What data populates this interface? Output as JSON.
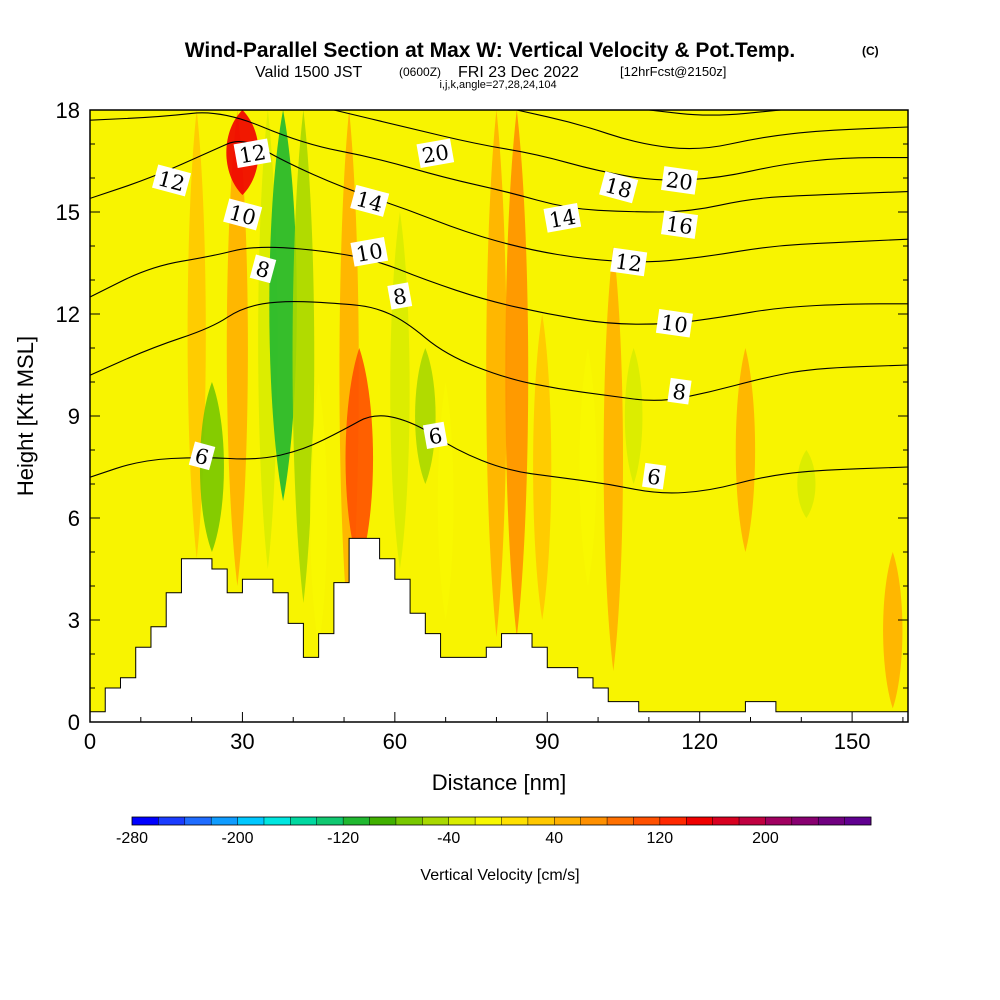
{
  "chart_data": {
    "type": "heatmap",
    "title": "Wind-Parallel Section at Max W: Vertical Velocity & Pot.Temp.",
    "title_suffix": "(C)",
    "subtitle_main": "Valid 1500 JST",
    "subtitle_utc": "(0600Z)",
    "subtitle_date": "FRI 23 Dec 2022",
    "subtitle_fcst": "[12hrFcst@2150z]",
    "subtitle_grid": "i,j,k,angle=27,28,24,104",
    "xlabel": "Distance [nm]",
    "ylabel": "Height [Kft MSL]",
    "xlim": [
      0,
      161
    ],
    "ylim": [
      0,
      18
    ],
    "x_ticks": [
      0,
      30,
      60,
      90,
      120,
      150
    ],
    "x_tick_labels": [
      "0",
      "30",
      "60",
      "90",
      "120",
      "150"
    ],
    "y_ticks": [
      0,
      3,
      6,
      9,
      12,
      15,
      18
    ],
    "y_tick_labels": [
      "0",
      "3",
      "6",
      "9",
      "12",
      "15",
      "18"
    ],
    "colorbar": {
      "label": "Vertical Velocity [cm/s]",
      "min": -280,
      "max": 280,
      "step": 20,
      "tick_values": [
        -280,
        -200,
        -120,
        -40,
        40,
        120,
        200
      ],
      "tick_labels": [
        "-280",
        "-200",
        "-120",
        "-40",
        "40",
        "120",
        "200"
      ],
      "colors": [
        "#0000ff",
        "#1a3cff",
        "#1f6cff",
        "#0f9cff",
        "#00c8ff",
        "#00e6e0",
        "#00d8a0",
        "#10c870",
        "#20b830",
        "#40b000",
        "#78c800",
        "#a8d800",
        "#d8ec00",
        "#f8f800",
        "#ffe000",
        "#ffc800",
        "#ffb000",
        "#ff9000",
        "#ff7000",
        "#ff5000",
        "#ff2800",
        "#f00000",
        "#d80020",
        "#c00040",
        "#a00060",
        "#880070",
        "#700080",
        "#600090"
      ]
    },
    "velocity_bands": [
      {
        "x": 21,
        "w": 30,
        "ytop": 18,
        "ybot": 4.8
      },
      {
        "x": 24,
        "w": -80,
        "ytop": 10,
        "ybot": 5.0
      },
      {
        "x": 29,
        "w": 55,
        "ytop": 18,
        "ybot": 4.0
      },
      {
        "x": 30,
        "w": 150,
        "ytop": 18,
        "ybot": 15.5
      },
      {
        "x": 35,
        "w": -40,
        "ytop": 18,
        "ybot": 4.5
      },
      {
        "x": 38,
        "w": -110,
        "ytop": 18,
        "ybot": 6.5
      },
      {
        "x": 42,
        "w": -60,
        "ytop": 18,
        "ybot": 3.5
      },
      {
        "x": 45,
        "w": -20,
        "ytop": 10,
        "ybot": 2.2
      },
      {
        "x": 51,
        "w": 40,
        "ytop": 18,
        "ybot": 2.5
      },
      {
        "x": 53,
        "w": 110,
        "ytop": 11,
        "ybot": 4.5
      },
      {
        "x": 61,
        "w": -40,
        "ytop": 15,
        "ybot": 4.5
      },
      {
        "x": 66,
        "w": -50,
        "ytop": 11,
        "ybot": 7
      },
      {
        "x": 70,
        "w": -10,
        "ytop": 10,
        "ybot": 3
      },
      {
        "x": 80,
        "w": 50,
        "ytop": 18,
        "ybot": 2.5
      },
      {
        "x": 84,
        "w": 70,
        "ytop": 18,
        "ybot": 2.5
      },
      {
        "x": 89,
        "w": 30,
        "ytop": 12,
        "ybot": 3
      },
      {
        "x": 98,
        "w": -20,
        "ytop": 11,
        "ybot": 4
      },
      {
        "x": 103,
        "w": 40,
        "ytop": 14,
        "ybot": 1.5
      },
      {
        "x": 107,
        "w": -25,
        "ytop": 11,
        "ybot": 7
      },
      {
        "x": 129,
        "w": 40,
        "ytop": 11,
        "ybot": 5
      },
      {
        "x": 141,
        "w": -30,
        "ytop": 8,
        "ybot": 6
      },
      {
        "x": 158,
        "w": 40,
        "ytop": 5,
        "ybot": 0.4
      }
    ],
    "terrain_nm": [
      {
        "x": 0,
        "h": 0.3
      },
      {
        "x": 3,
        "h": 1.0
      },
      {
        "x": 6,
        "h": 1.3
      },
      {
        "x": 9,
        "h": 2.2
      },
      {
        "x": 12,
        "h": 2.8
      },
      {
        "x": 15,
        "h": 3.8
      },
      {
        "x": 18,
        "h": 4.8
      },
      {
        "x": 24,
        "h": 4.5
      },
      {
        "x": 27,
        "h": 3.8
      },
      {
        "x": 30,
        "h": 4.2
      },
      {
        "x": 36,
        "h": 3.8
      },
      {
        "x": 39,
        "h": 2.9
      },
      {
        "x": 42,
        "h": 1.9
      },
      {
        "x": 45,
        "h": 2.6
      },
      {
        "x": 48,
        "h": 4.1
      },
      {
        "x": 51,
        "h": 5.4
      },
      {
        "x": 57,
        "h": 4.8
      },
      {
        "x": 60,
        "h": 4.2
      },
      {
        "x": 63,
        "h": 3.2
      },
      {
        "x": 66,
        "h": 2.6
      },
      {
        "x": 69,
        "h": 1.9
      },
      {
        "x": 78,
        "h": 2.2
      },
      {
        "x": 81,
        "h": 2.6
      },
      {
        "x": 87,
        "h": 2.2
      },
      {
        "x": 90,
        "h": 1.6
      },
      {
        "x": 96,
        "h": 1.3
      },
      {
        "x": 99,
        "h": 1.0
      },
      {
        "x": 102,
        "h": 0.6
      },
      {
        "x": 108,
        "h": 0.3
      },
      {
        "x": 129,
        "h": 0.6
      },
      {
        "x": 135,
        "h": 0.3
      },
      {
        "x": 161,
        "h": 0.3
      }
    ],
    "potential_temperature_contours": [
      {
        "value": 6,
        "points": [
          [
            0,
            7.2
          ],
          [
            10,
            7.7
          ],
          [
            22,
            7.8
          ],
          [
            33,
            7.7
          ],
          [
            42,
            8.0
          ],
          [
            50,
            8.6
          ],
          [
            56,
            9.1
          ],
          [
            64,
            8.8
          ],
          [
            72,
            8.0
          ],
          [
            82,
            7.4
          ],
          [
            92,
            7.2
          ],
          [
            102,
            7.0
          ],
          [
            112,
            6.7
          ],
          [
            122,
            6.8
          ],
          [
            132,
            7.2
          ],
          [
            142,
            7.4
          ],
          [
            161,
            7.5
          ]
        ]
      },
      {
        "value": 8,
        "points": [
          [
            0,
            10.2
          ],
          [
            12,
            11.0
          ],
          [
            24,
            11.6
          ],
          [
            30,
            12.2
          ],
          [
            38,
            12.4
          ],
          [
            50,
            12.3
          ],
          [
            56,
            12.2
          ],
          [
            62,
            11.8
          ],
          [
            70,
            10.8
          ],
          [
            82,
            10.1
          ],
          [
            92,
            9.8
          ],
          [
            102,
            9.6
          ],
          [
            112,
            9.4
          ],
          [
            122,
            9.7
          ],
          [
            132,
            10.1
          ],
          [
            142,
            10.4
          ],
          [
            161,
            10.5
          ]
        ]
      },
      {
        "value": 10,
        "points": [
          [
            0,
            12.5
          ],
          [
            12,
            13.4
          ],
          [
            24,
            13.7
          ],
          [
            32,
            14.0
          ],
          [
            44,
            13.9
          ],
          [
            56,
            13.6
          ],
          [
            66,
            13.0
          ],
          [
            78,
            12.4
          ],
          [
            90,
            12.0
          ],
          [
            102,
            11.7
          ],
          [
            114,
            11.7
          ],
          [
            124,
            11.9
          ],
          [
            136,
            12.2
          ],
          [
            150,
            12.3
          ],
          [
            161,
            12.3
          ]
        ]
      },
      {
        "value": 12,
        "points": [
          [
            0,
            15.4
          ],
          [
            12,
            16.0
          ],
          [
            24,
            16.8
          ],
          [
            30,
            17.2
          ],
          [
            38,
            16.5
          ],
          [
            50,
            15.7
          ],
          [
            62,
            15.1
          ],
          [
            74,
            14.4
          ],
          [
            86,
            13.9
          ],
          [
            98,
            13.6
          ],
          [
            110,
            13.5
          ],
          [
            122,
            13.7
          ],
          [
            134,
            14.0
          ],
          [
            146,
            14.1
          ],
          [
            161,
            14.2
          ]
        ]
      },
      {
        "value": 14,
        "points": [
          [
            0,
            17.7
          ],
          [
            14,
            17.8
          ],
          [
            26,
            18.0
          ],
          [
            42,
            17.0
          ],
          [
            56,
            16.6
          ],
          [
            70,
            16.0
          ],
          [
            82,
            15.6
          ],
          [
            94,
            15.1
          ],
          [
            106,
            15.0
          ],
          [
            118,
            15.0
          ],
          [
            130,
            15.4
          ],
          [
            142,
            15.5
          ],
          [
            161,
            15.6
          ]
        ]
      },
      {
        "value": 16,
        "points": [
          [
            48,
            18.0
          ],
          [
            62,
            17.5
          ],
          [
            76,
            17.0
          ],
          [
            88,
            16.7
          ],
          [
            100,
            16.2
          ],
          [
            112,
            15.9
          ],
          [
            124,
            16.0
          ],
          [
            136,
            16.4
          ],
          [
            148,
            16.6
          ],
          [
            161,
            16.6
          ]
        ]
      },
      {
        "value": 18,
        "points": [
          [
            84,
            18.0
          ],
          [
            96,
            17.6
          ],
          [
            108,
            17.0
          ],
          [
            120,
            16.8
          ],
          [
            132,
            17.2
          ],
          [
            144,
            17.4
          ],
          [
            161,
            17.5
          ]
        ]
      },
      {
        "value": 20,
        "points": [
          [
            110,
            18.0
          ],
          [
            122,
            17.8
          ],
          [
            136,
            18.0
          ]
        ]
      }
    ],
    "contour_labels": [
      {
        "text": "6",
        "x": 22,
        "y": 7.8
      },
      {
        "text": "6",
        "x": 68,
        "y": 8.4
      },
      {
        "text": "6",
        "x": 111,
        "y": 7.2
      },
      {
        "text": "8",
        "x": 34,
        "y": 13.3
      },
      {
        "text": "8",
        "x": 61,
        "y": 12.5
      },
      {
        "text": "8",
        "x": 116,
        "y": 9.7
      },
      {
        "text": "10",
        "x": 30,
        "y": 14.9
      },
      {
        "text": "10",
        "x": 55,
        "y": 13.8
      },
      {
        "text": "10",
        "x": 115,
        "y": 11.7
      },
      {
        "text": "12",
        "x": 16,
        "y": 15.9
      },
      {
        "text": "12",
        "x": 32,
        "y": 16.7
      },
      {
        "text": "12",
        "x": 106,
        "y": 13.5
      },
      {
        "text": "14",
        "x": 55,
        "y": 15.3
      },
      {
        "text": "14",
        "x": 93,
        "y": 14.8
      },
      {
        "text": "16",
        "x": 116,
        "y": 14.6
      },
      {
        "text": "18",
        "x": 104,
        "y": 15.7
      },
      {
        "text": "20",
        "x": 68,
        "y": 16.7
      },
      {
        "text": "20",
        "x": 116,
        "y": 15.9
      }
    ]
  }
}
